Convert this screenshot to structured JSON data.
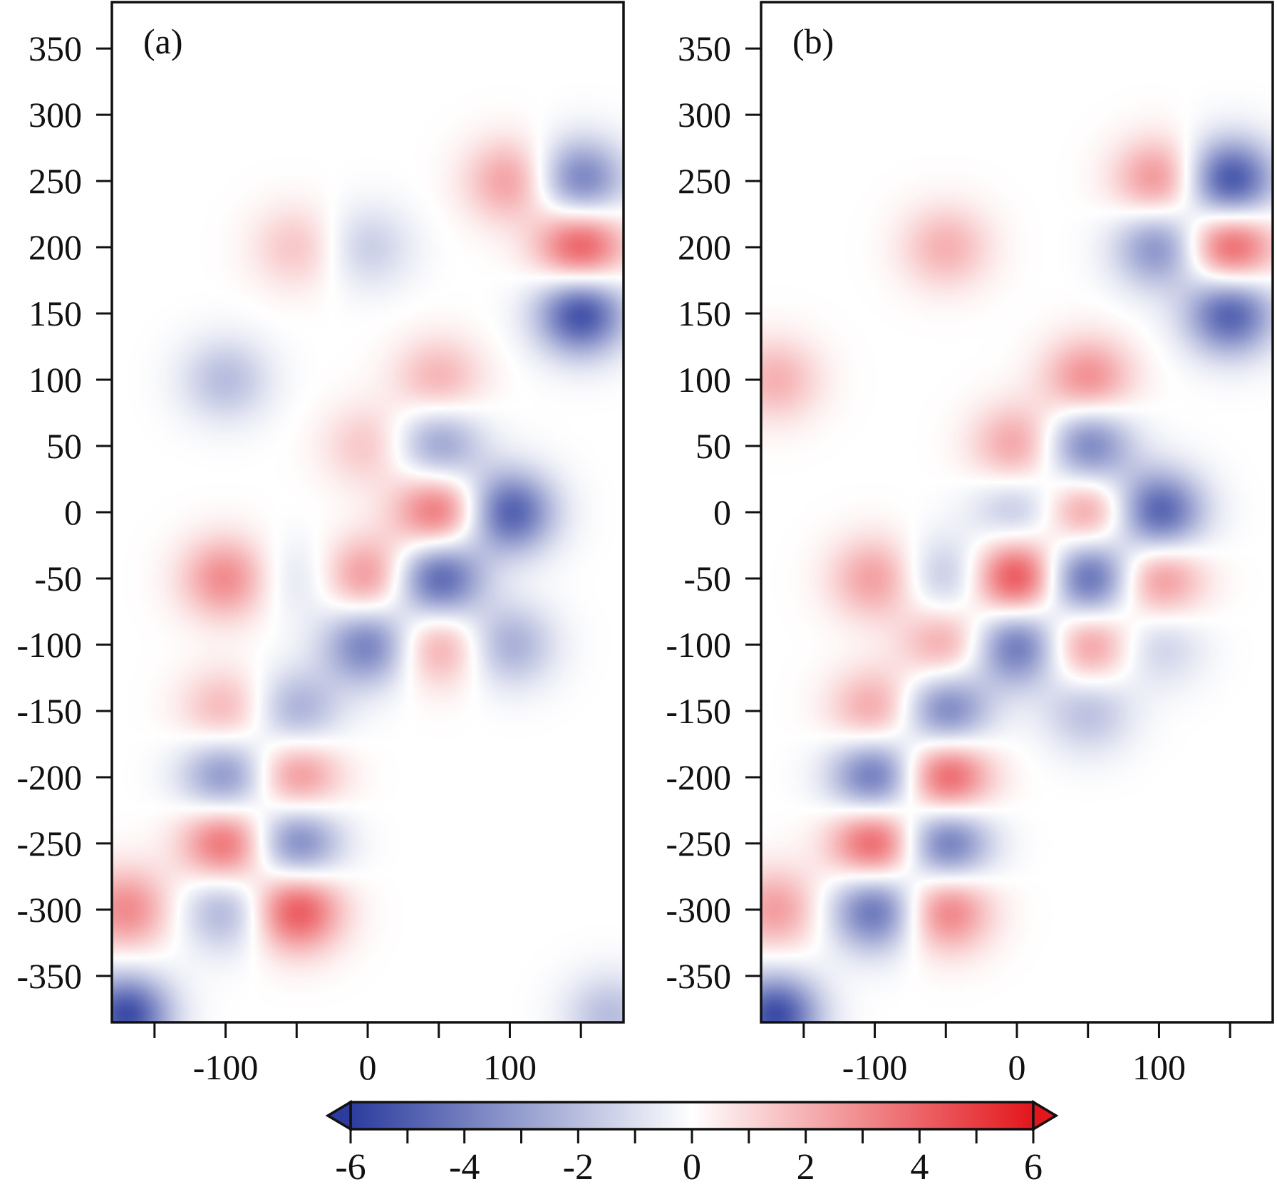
{
  "chart_data": [
    {
      "type": "heatmap",
      "panel_label": "(a)",
      "x_ticks": [
        -100,
        0,
        100
      ],
      "y_ticks": [
        350,
        300,
        250,
        200,
        150,
        100,
        50,
        0,
        -50,
        -100,
        -150,
        -200,
        -250,
        -300,
        -350
      ],
      "xlim": [
        -180,
        180
      ],
      "ylim": [
        -385,
        385
      ],
      "blobs": [
        {
          "x": -100,
          "y": -50,
          "v": 3.0
        },
        {
          "x": -100,
          "y": -150,
          "v": 2.0
        },
        {
          "x": -100,
          "y": -200,
          "v": -3.5
        },
        {
          "x": -100,
          "y": -250,
          "v": 4.0
        },
        {
          "x": -100,
          "y": -300,
          "v": -2.5
        },
        {
          "x": -50,
          "y": -150,
          "v": -2.5
        },
        {
          "x": -50,
          "y": -200,
          "v": 3.0
        },
        {
          "x": -50,
          "y": -250,
          "v": -4.0
        },
        {
          "x": -50,
          "y": -300,
          "v": 4.5
        },
        {
          "x": 0,
          "y": -50,
          "v": 3.0
        },
        {
          "x": 0,
          "y": -100,
          "v": -4.0
        },
        {
          "x": 50,
          "y": 0,
          "v": 4.0
        },
        {
          "x": 50,
          "y": -50,
          "v": -5.0
        },
        {
          "x": 50,
          "y": -100,
          "v": 2.5
        },
        {
          "x": 50,
          "y": 50,
          "v": -3.0
        },
        {
          "x": 100,
          "y": 0,
          "v": -5.0
        },
        {
          "x": 100,
          "y": -100,
          "v": -2.5
        },
        {
          "x": 50,
          "y": 100,
          "v": 2.0
        },
        {
          "x": 150,
          "y": 150,
          "v": -5.5
        },
        {
          "x": 150,
          "y": 200,
          "v": 4.5
        },
        {
          "x": 150,
          "y": 250,
          "v": -4.0
        },
        {
          "x": 100,
          "y": 250,
          "v": 2.5
        },
        {
          "x": -100,
          "y": 100,
          "v": -2.0
        },
        {
          "x": 0,
          "y": 200,
          "v": -1.5
        },
        {
          "x": -50,
          "y": 200,
          "v": 1.5
        },
        {
          "x": -170,
          "y": -380,
          "v": -5.5
        },
        {
          "x": -170,
          "y": -300,
          "v": 3.0
        },
        {
          "x": 170,
          "y": -380,
          "v": -2.0
        },
        {
          "x": 0,
          "y": 50,
          "v": 1.5
        },
        {
          "x": -50,
          "y": -50,
          "v": -1.0
        }
      ]
    },
    {
      "type": "heatmap",
      "panel_label": "(b)",
      "x_ticks": [
        -100,
        0,
        100
      ],
      "y_ticks": [
        350,
        300,
        250,
        200,
        150,
        100,
        50,
        0,
        -50,
        -100,
        -150,
        -200,
        -250,
        -300,
        -350
      ],
      "xlim": [
        -180,
        180
      ],
      "ylim": [
        -385,
        385
      ],
      "blobs": [
        {
          "x": -100,
          "y": -50,
          "v": 2.5
        },
        {
          "x": -100,
          "y": -150,
          "v": 2.5
        },
        {
          "x": -100,
          "y": -200,
          "v": -4.5
        },
        {
          "x": -100,
          "y": -250,
          "v": 4.5
        },
        {
          "x": -100,
          "y": -300,
          "v": -4.5
        },
        {
          "x": -50,
          "y": -100,
          "v": 2.5
        },
        {
          "x": -50,
          "y": -150,
          "v": -4.0
        },
        {
          "x": -50,
          "y": -200,
          "v": 4.5
        },
        {
          "x": -50,
          "y": -250,
          "v": -4.5
        },
        {
          "x": -50,
          "y": -300,
          "v": 3.5
        },
        {
          "x": -50,
          "y": -50,
          "v": -2.0
        },
        {
          "x": 0,
          "y": -50,
          "v": 5.0
        },
        {
          "x": 0,
          "y": -100,
          "v": -4.5
        },
        {
          "x": 0,
          "y": 0,
          "v": -2.0
        },
        {
          "x": 0,
          "y": 50,
          "v": 2.5
        },
        {
          "x": 50,
          "y": 0,
          "v": 3.0
        },
        {
          "x": 50,
          "y": -50,
          "v": -5.0
        },
        {
          "x": 50,
          "y": -100,
          "v": 3.0
        },
        {
          "x": 50,
          "y": -150,
          "v": -2.0
        },
        {
          "x": 50,
          "y": 50,
          "v": -4.0
        },
        {
          "x": 50,
          "y": 100,
          "v": 3.0
        },
        {
          "x": 100,
          "y": 0,
          "v": -5.0
        },
        {
          "x": 100,
          "y": -50,
          "v": 3.0
        },
        {
          "x": 100,
          "y": -100,
          "v": -1.5
        },
        {
          "x": 100,
          "y": 200,
          "v": -3.5
        },
        {
          "x": 100,
          "y": 250,
          "v": 3.0
        },
        {
          "x": 150,
          "y": 150,
          "v": -5.0
        },
        {
          "x": 150,
          "y": 200,
          "v": 4.5
        },
        {
          "x": 150,
          "y": 250,
          "v": -5.5
        },
        {
          "x": -50,
          "y": 200,
          "v": 2.0
        },
        {
          "x": -170,
          "y": -380,
          "v": -5.5
        },
        {
          "x": -170,
          "y": -300,
          "v": 2.5
        },
        {
          "x": -170,
          "y": 100,
          "v": 2.0
        }
      ]
    }
  ],
  "colorbar": {
    "min": -6,
    "max": 6,
    "tick_labels": [
      "-6",
      "-4",
      "-2",
      "0",
      "2",
      "4",
      "6"
    ],
    "minor_ticks": [
      -5,
      -3,
      -1,
      1,
      3,
      5
    ],
    "extend": "both",
    "colors": {
      "neg": "#2b3c9e",
      "mid": "#ffffff",
      "pos": "#e3161c"
    }
  }
}
